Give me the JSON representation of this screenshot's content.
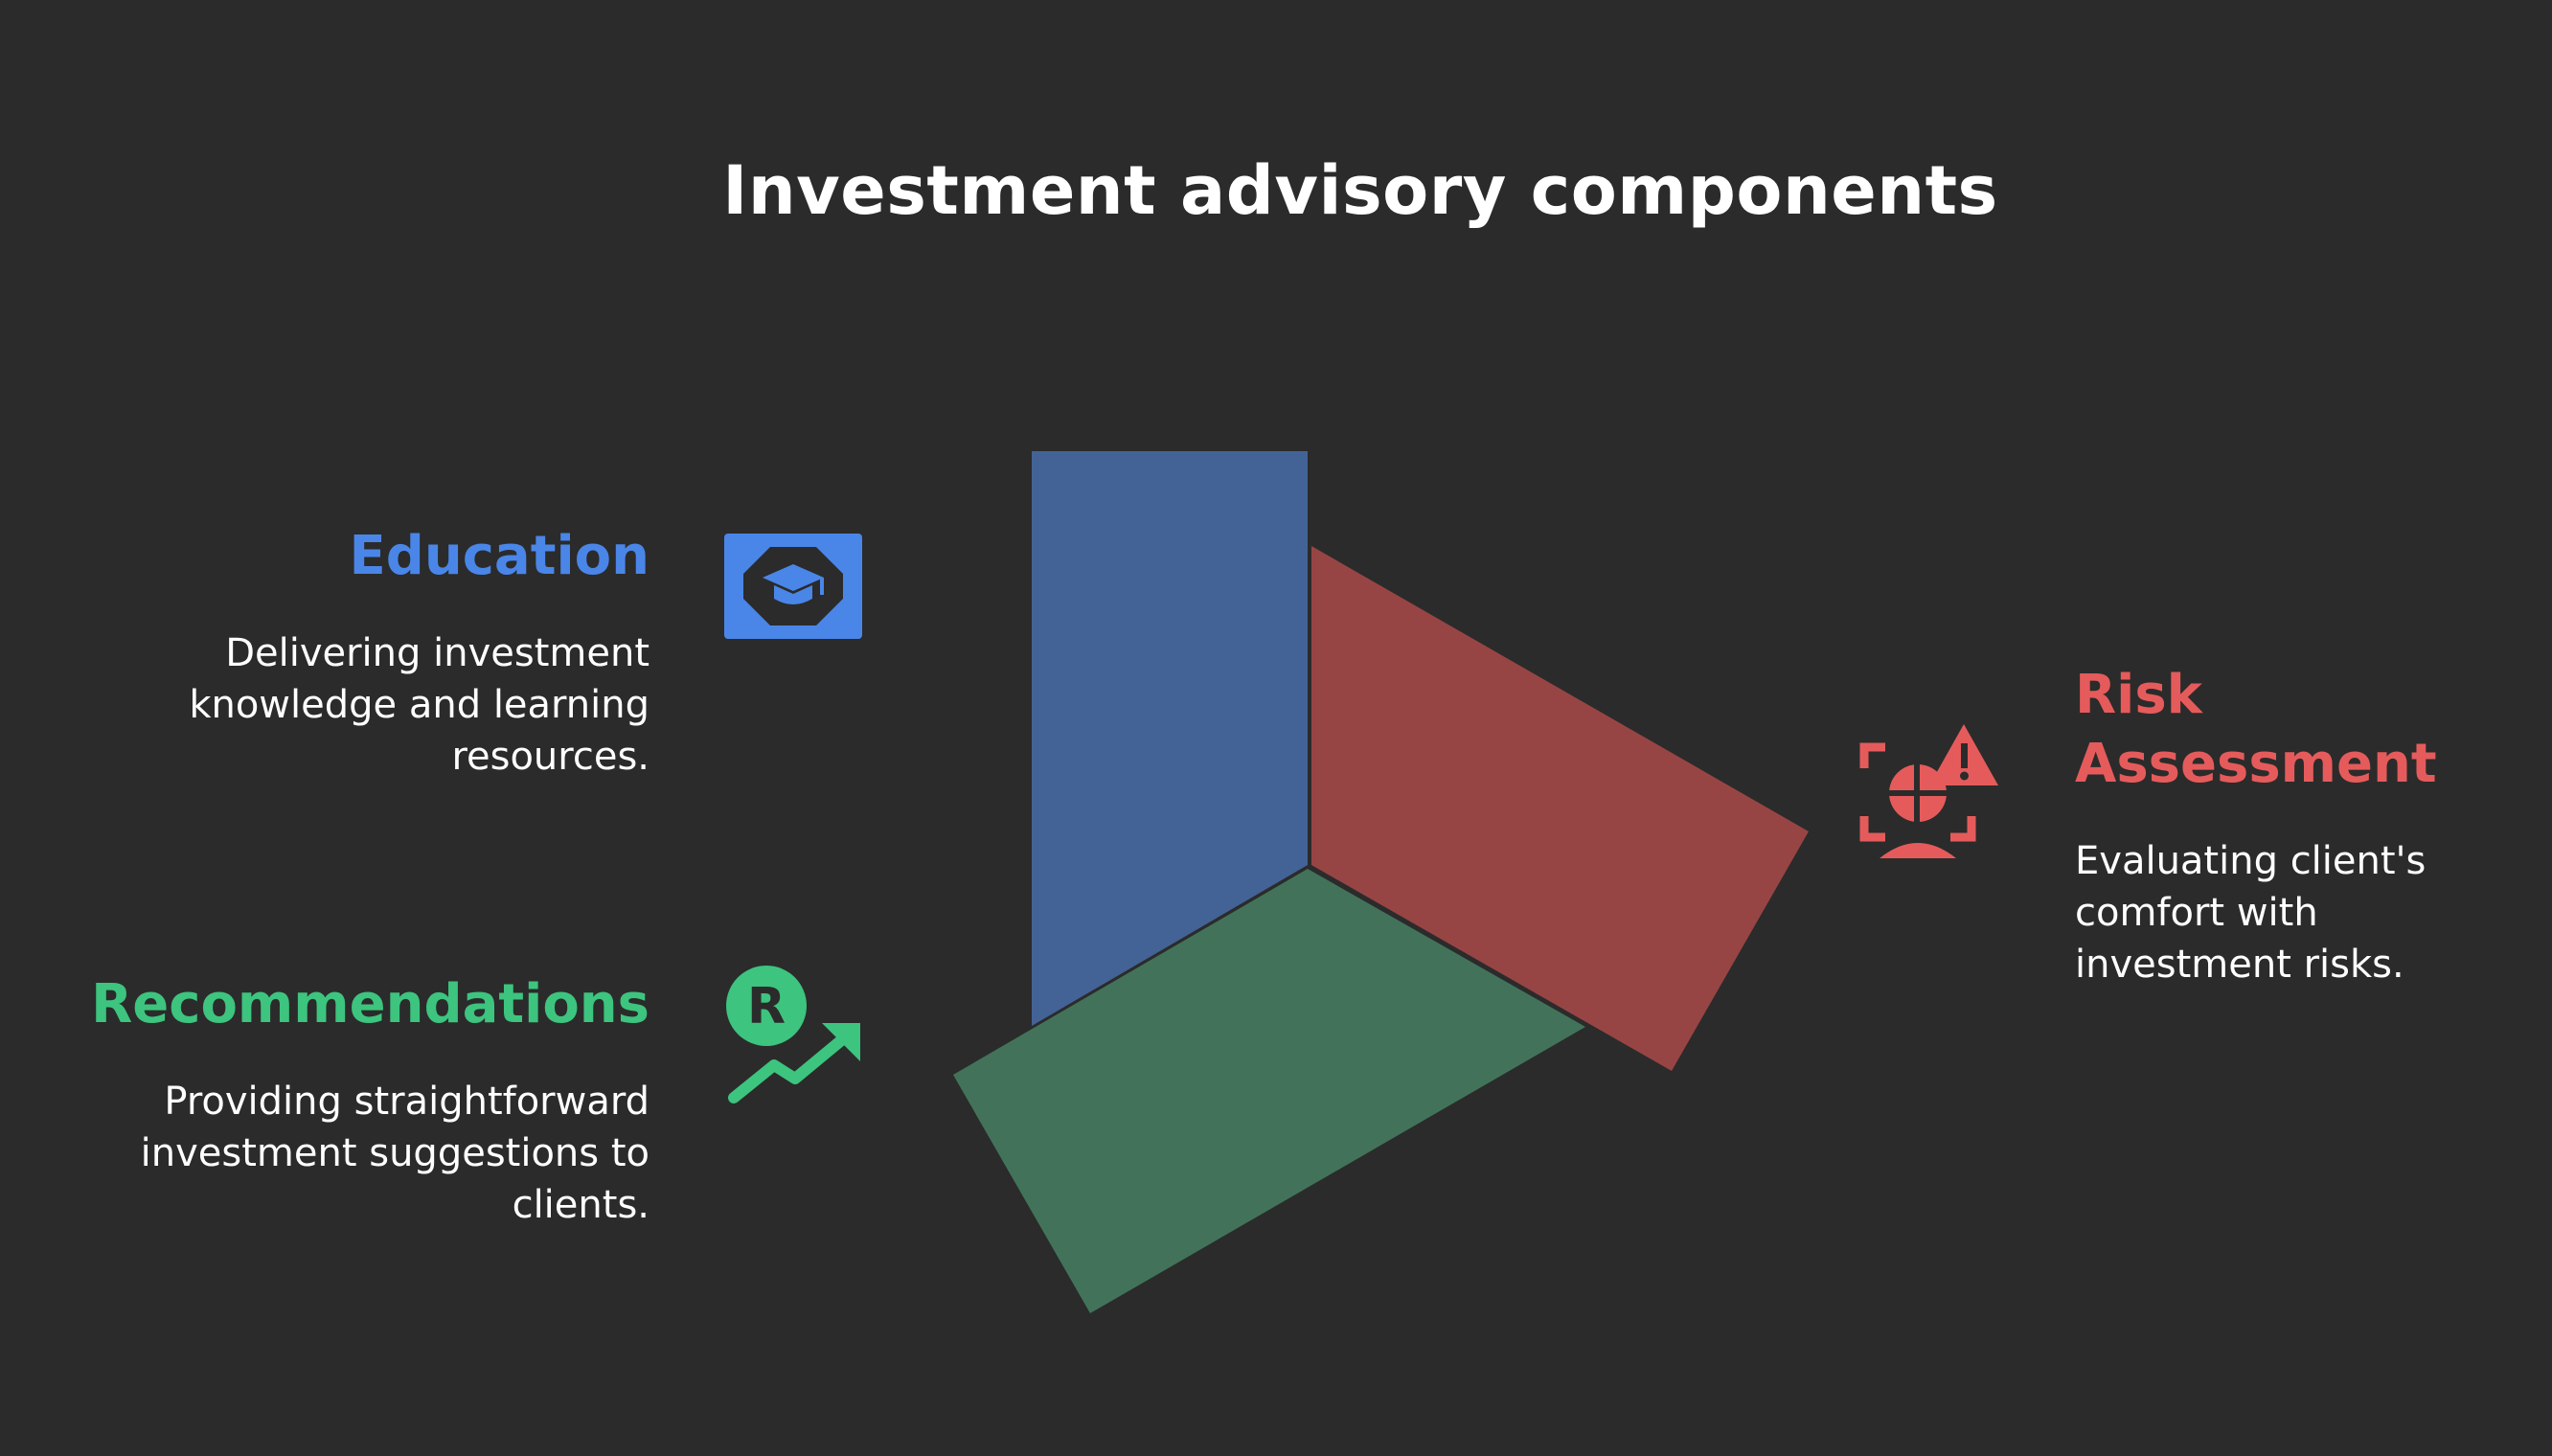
{
  "title": "Investment advisory components",
  "colors": {
    "background": "#2b2b2b",
    "education": "#4a86e8",
    "recommendations": "#3dc47e",
    "risk": "#e55b5b",
    "panel_blue": "#436396",
    "panel_red": "#974544",
    "panel_green": "#42735a"
  },
  "education": {
    "title": "Education",
    "description": "Delivering investment knowledge and learning resources.",
    "icon": "graduation-cap-icon"
  },
  "recommendations": {
    "title": "Recommendations",
    "description": "Providing straightforward investment suggestions to clients.",
    "icon": "growth-arrow-icon"
  },
  "risk": {
    "title": "Risk Assessment",
    "description": "Evaluating client's comfort with investment risks.",
    "icon": "risk-warning-icon"
  }
}
